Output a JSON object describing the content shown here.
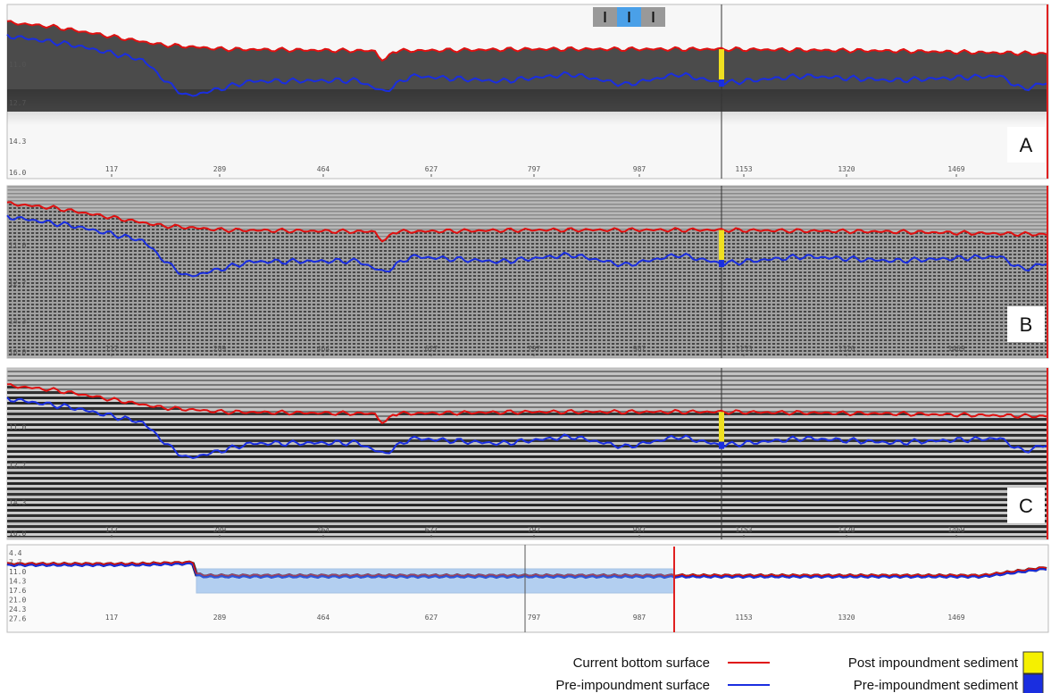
{
  "panels": [
    {
      "letter": "A",
      "depth_labels": [
        "11.0",
        "12.7",
        "14.3",
        "16.0"
      ]
    },
    {
      "letter": "B",
      "depth_labels": [
        "11.0",
        "12.7",
        "14.3",
        "16.0"
      ]
    },
    {
      "letter": "C",
      "depth_labels": [
        "11.0",
        "12.7",
        "14.3",
        "16.0"
      ]
    }
  ],
  "x_labels": [
    "117",
    "289",
    "464",
    "627",
    "797",
    "987",
    "1153",
    "1320",
    "1469"
  ],
  "overview": {
    "depth_labels": [
      "4.4",
      "7.7",
      "11.0",
      "14.3",
      "17.6",
      "21.0",
      "24.3",
      "27.6"
    ]
  },
  "legend": [
    {
      "label": "Current bottom surface"
    },
    {
      "label": "Pre-impoundment surface"
    },
    {
      "label": "Post impoundment sediment"
    },
    {
      "label": "Pre-impoundment sediment"
    }
  ]
}
